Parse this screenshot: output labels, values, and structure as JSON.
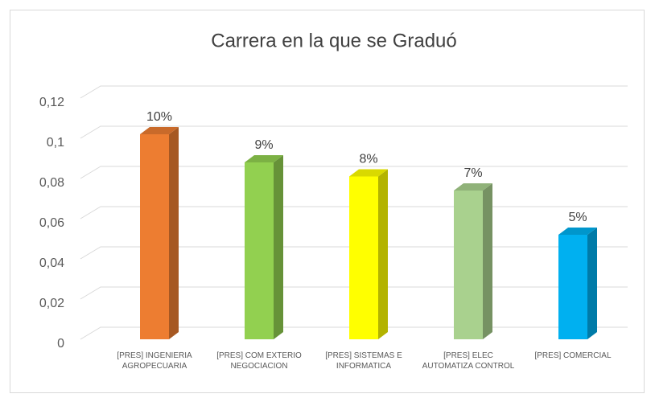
{
  "chart_data": {
    "type": "bar3d",
    "title": "Carrera  en la que se Graduó",
    "categories": [
      "[PRES] INGENIERIA AGROPECUARIA",
      "[PRES] COM EXTERIO NEGOCIACION",
      "[PRES] SISTEMAS E INFORMATICA",
      "[PRES] ELEC AUTOMATIZA CONTROL",
      "[PRES] COMERCIAL"
    ],
    "values": [
      0.102,
      0.088,
      0.081,
      0.074,
      0.052
    ],
    "value_labels": [
      "10%",
      "9%",
      "8%",
      "7%",
      "5%"
    ],
    "colors": [
      "#ed7d31",
      "#92d050",
      "#ffff00",
      "#a9d18e",
      "#00b0f0"
    ],
    "ylim": [
      0,
      0.12
    ],
    "yticks": [
      0,
      {
        "value": 0.02,
        "label": "0,02"
      },
      {
        "value": 0.04,
        "label": "0,04"
      },
      {
        "value": 0.06,
        "label": "0,06"
      },
      {
        "value": 0.08,
        "label": "0,08"
      },
      {
        "value": 0.1,
        "label": "0,1"
      },
      {
        "value": 0.12,
        "label": "0,12"
      }
    ],
    "grid": true
  }
}
